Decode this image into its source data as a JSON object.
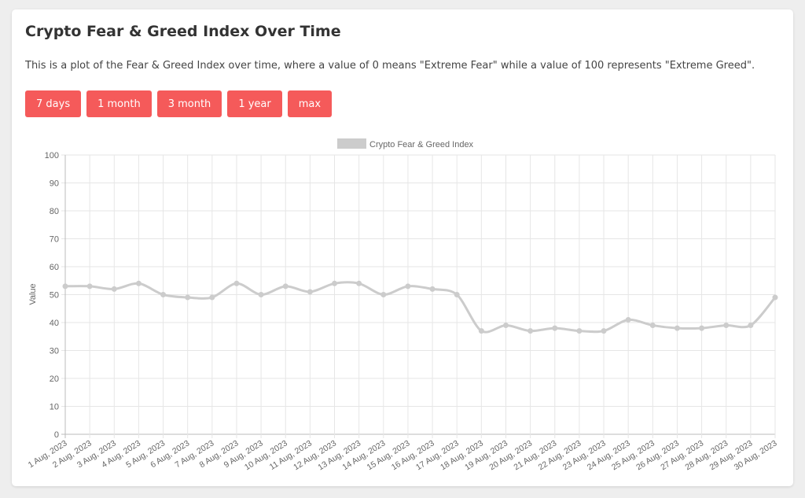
{
  "header": {
    "title": "Crypto Fear & Greed Index Over Time",
    "description": "This is a plot of the Fear & Greed Index over time, where a value of 0 means \"Extreme Fear\" while a value of 100 represents \"Extreme Greed\"."
  },
  "range_buttons": [
    "7 days",
    "1 month",
    "3 month",
    "1 year",
    "max"
  ],
  "colors": {
    "button": "#f55a5a",
    "line": "#cccccc",
    "grid": "#e6e6e6"
  },
  "chart_data": {
    "type": "line",
    "title": "",
    "xlabel": "",
    "ylabel": "Value",
    "ylim": [
      0,
      100
    ],
    "yticks": [
      0,
      10,
      20,
      30,
      40,
      50,
      60,
      70,
      80,
      90,
      100
    ],
    "grid": true,
    "legend_position": "top-center",
    "x": [
      "1 Aug, 2023",
      "2 Aug, 2023",
      "3 Aug, 2023",
      "4 Aug, 2023",
      "5 Aug, 2023",
      "6 Aug, 2023",
      "7 Aug, 2023",
      "8 Aug, 2023",
      "9 Aug, 2023",
      "10 Aug, 2023",
      "11 Aug, 2023",
      "12 Aug, 2023",
      "13 Aug, 2023",
      "14 Aug, 2023",
      "15 Aug, 2023",
      "16 Aug, 2023",
      "17 Aug, 2023",
      "18 Aug, 2023",
      "19 Aug, 2023",
      "20 Aug, 2023",
      "21 Aug, 2023",
      "22 Aug, 2023",
      "23 Aug, 2023",
      "24 Aug, 2023",
      "25 Aug, 2023",
      "26 Aug, 2023",
      "27 Aug, 2023",
      "28 Aug, 2023",
      "29 Aug, 2023",
      "30 Aug, 2023"
    ],
    "series": [
      {
        "name": "Crypto Fear & Greed Index",
        "values": [
          53,
          53,
          52,
          54,
          50,
          49,
          49,
          54,
          50,
          53,
          51,
          54,
          54,
          50,
          53,
          52,
          50,
          37,
          39,
          37,
          38,
          37,
          37,
          41,
          39,
          38,
          38,
          39,
          39,
          49
        ]
      }
    ]
  }
}
